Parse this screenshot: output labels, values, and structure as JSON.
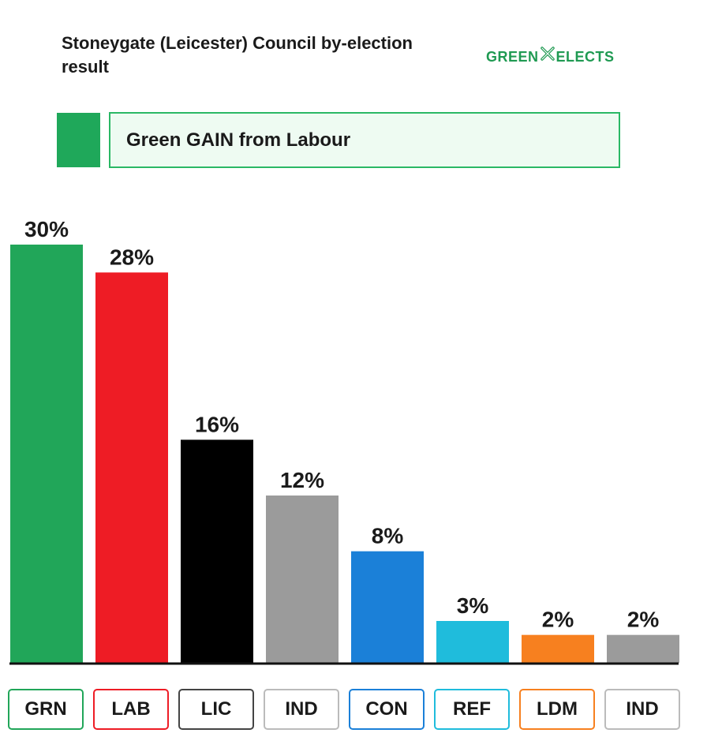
{
  "header": {
    "title": "Stoneygate (Leicester) Council by-election result",
    "logo_left": "GREEN",
    "logo_right": "ELECTS",
    "logo_color": "#1f9a52"
  },
  "banner": {
    "text": "Green GAIN from Labour",
    "swatch_color": "#1fa85a",
    "border_color": "#2ab865",
    "fill_color": "#eefbf2"
  },
  "chart_data": {
    "type": "bar",
    "title": "",
    "xlabel": "",
    "ylabel": "",
    "ylim": [
      0,
      30
    ],
    "grid": false,
    "categories": [
      "GRN",
      "LAB",
      "LIC",
      "IND",
      "CON",
      "REF",
      "LDM",
      "IND"
    ],
    "values": [
      30,
      28,
      16,
      12,
      8,
      3,
      2,
      2
    ],
    "data_labels": [
      "30%",
      "28%",
      "16%",
      "12%",
      "8%",
      "3%",
      "2%",
      "2%"
    ],
    "colors": [
      "#21a659",
      "#ee1c25",
      "#000000",
      "#9b9b9b",
      "#1b80d8",
      "#1fbcdc",
      "#f7801f",
      "#9b9b9b"
    ],
    "label_border_colors": [
      "#21a659",
      "#ee1c25",
      "#444444",
      "#bbbbbb",
      "#1b80d8",
      "#1fbcdc",
      "#f7801f",
      "#bbbbbb"
    ]
  }
}
